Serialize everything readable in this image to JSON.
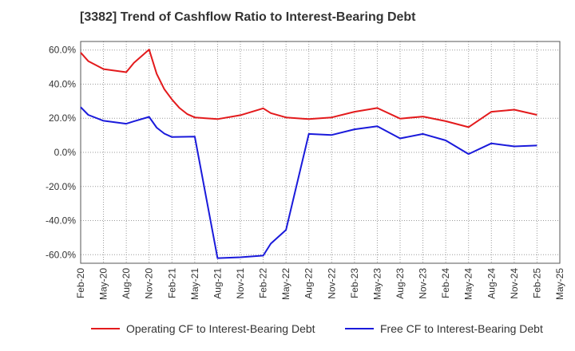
{
  "chart_data": {
    "type": "line",
    "title": "[3382]  Trend of Cashflow Ratio to Interest-Bearing Debt",
    "xlabel": "",
    "ylabel": "",
    "ylim": [
      -65,
      65
    ],
    "yticks": [
      60,
      40,
      20,
      0,
      -20,
      -40,
      -60
    ],
    "ytick_labels": [
      "60.0%",
      "40.0%",
      "20.0%",
      "0.0%",
      "-20.0%",
      "-40.0%",
      "-60.0%"
    ],
    "x_tick_labels": [
      "Feb-20",
      "May-20",
      "Aug-20",
      "Nov-20",
      "Feb-21",
      "May-21",
      "Aug-21",
      "Nov-21",
      "Feb-22",
      "May-22",
      "Aug-22",
      "Nov-22",
      "Feb-23",
      "May-23",
      "Aug-23",
      "Nov-23",
      "Feb-24",
      "May-24",
      "Aug-24",
      "Nov-24",
      "Feb-25",
      "May-25"
    ],
    "grid": true,
    "legend_position": "bottom",
    "series": [
      {
        "name": "Operating CF to Interest-Bearing Debt",
        "color": "#e31a1c",
        "points": [
          [
            "Feb-20",
            58.5
          ],
          [
            "Mar-20",
            53.5
          ],
          [
            "May-20",
            48.8
          ],
          [
            "Aug-20",
            47.0
          ],
          [
            "Sep-20",
            52.5
          ],
          [
            "Nov-20",
            60.3
          ],
          [
            "Dec-20",
            46.0
          ],
          [
            "Jan-21",
            37.0
          ],
          [
            "Feb-21",
            31.0
          ],
          [
            "Mar-21",
            26.0
          ],
          [
            "Apr-21",
            22.5
          ],
          [
            "May-21",
            20.5
          ],
          [
            "Aug-21",
            19.5
          ],
          [
            "Nov-21",
            21.8
          ],
          [
            "Feb-22",
            25.8
          ],
          [
            "Mar-22",
            23.0
          ],
          [
            "May-22",
            20.5
          ],
          [
            "Aug-22",
            19.5
          ],
          [
            "Nov-22",
            20.5
          ],
          [
            "Feb-23",
            23.8
          ],
          [
            "May-23",
            26.0
          ],
          [
            "Aug-23",
            19.8
          ],
          [
            "Nov-23",
            21.0
          ],
          [
            "Feb-24",
            18.3
          ],
          [
            "May-24",
            14.8
          ],
          [
            "Aug-24",
            23.8
          ],
          [
            "Nov-24",
            25.0
          ],
          [
            "Feb-25",
            22.0
          ]
        ]
      },
      {
        "name": "Free CF to Interest-Bearing Debt",
        "color": "#1a1adb",
        "points": [
          [
            "Feb-20",
            26.5
          ],
          [
            "Mar-20",
            22.0
          ],
          [
            "May-20",
            18.5
          ],
          [
            "Aug-20",
            16.8
          ],
          [
            "Sep-20",
            18.2
          ],
          [
            "Nov-20",
            20.8
          ],
          [
            "Dec-20",
            14.5
          ],
          [
            "Jan-21",
            11.0
          ],
          [
            "Feb-21",
            9.0
          ],
          [
            "May-21",
            9.2
          ],
          [
            "Aug-21",
            -62.0
          ],
          [
            "Nov-21",
            -61.5
          ],
          [
            "Feb-22",
            -60.5
          ],
          [
            "Mar-22",
            -53.5
          ],
          [
            "May-22",
            -45.5
          ],
          [
            "Aug-22",
            10.8
          ],
          [
            "Nov-22",
            10.2
          ],
          [
            "Feb-23",
            13.5
          ],
          [
            "May-23",
            15.3
          ],
          [
            "Aug-23",
            8.2
          ],
          [
            "Nov-23",
            10.8
          ],
          [
            "Feb-24",
            7.0
          ],
          [
            "May-24",
            -1.0
          ],
          [
            "Aug-24",
            5.3
          ],
          [
            "Nov-24",
            3.5
          ],
          [
            "Feb-25",
            4.0
          ]
        ]
      }
    ]
  }
}
